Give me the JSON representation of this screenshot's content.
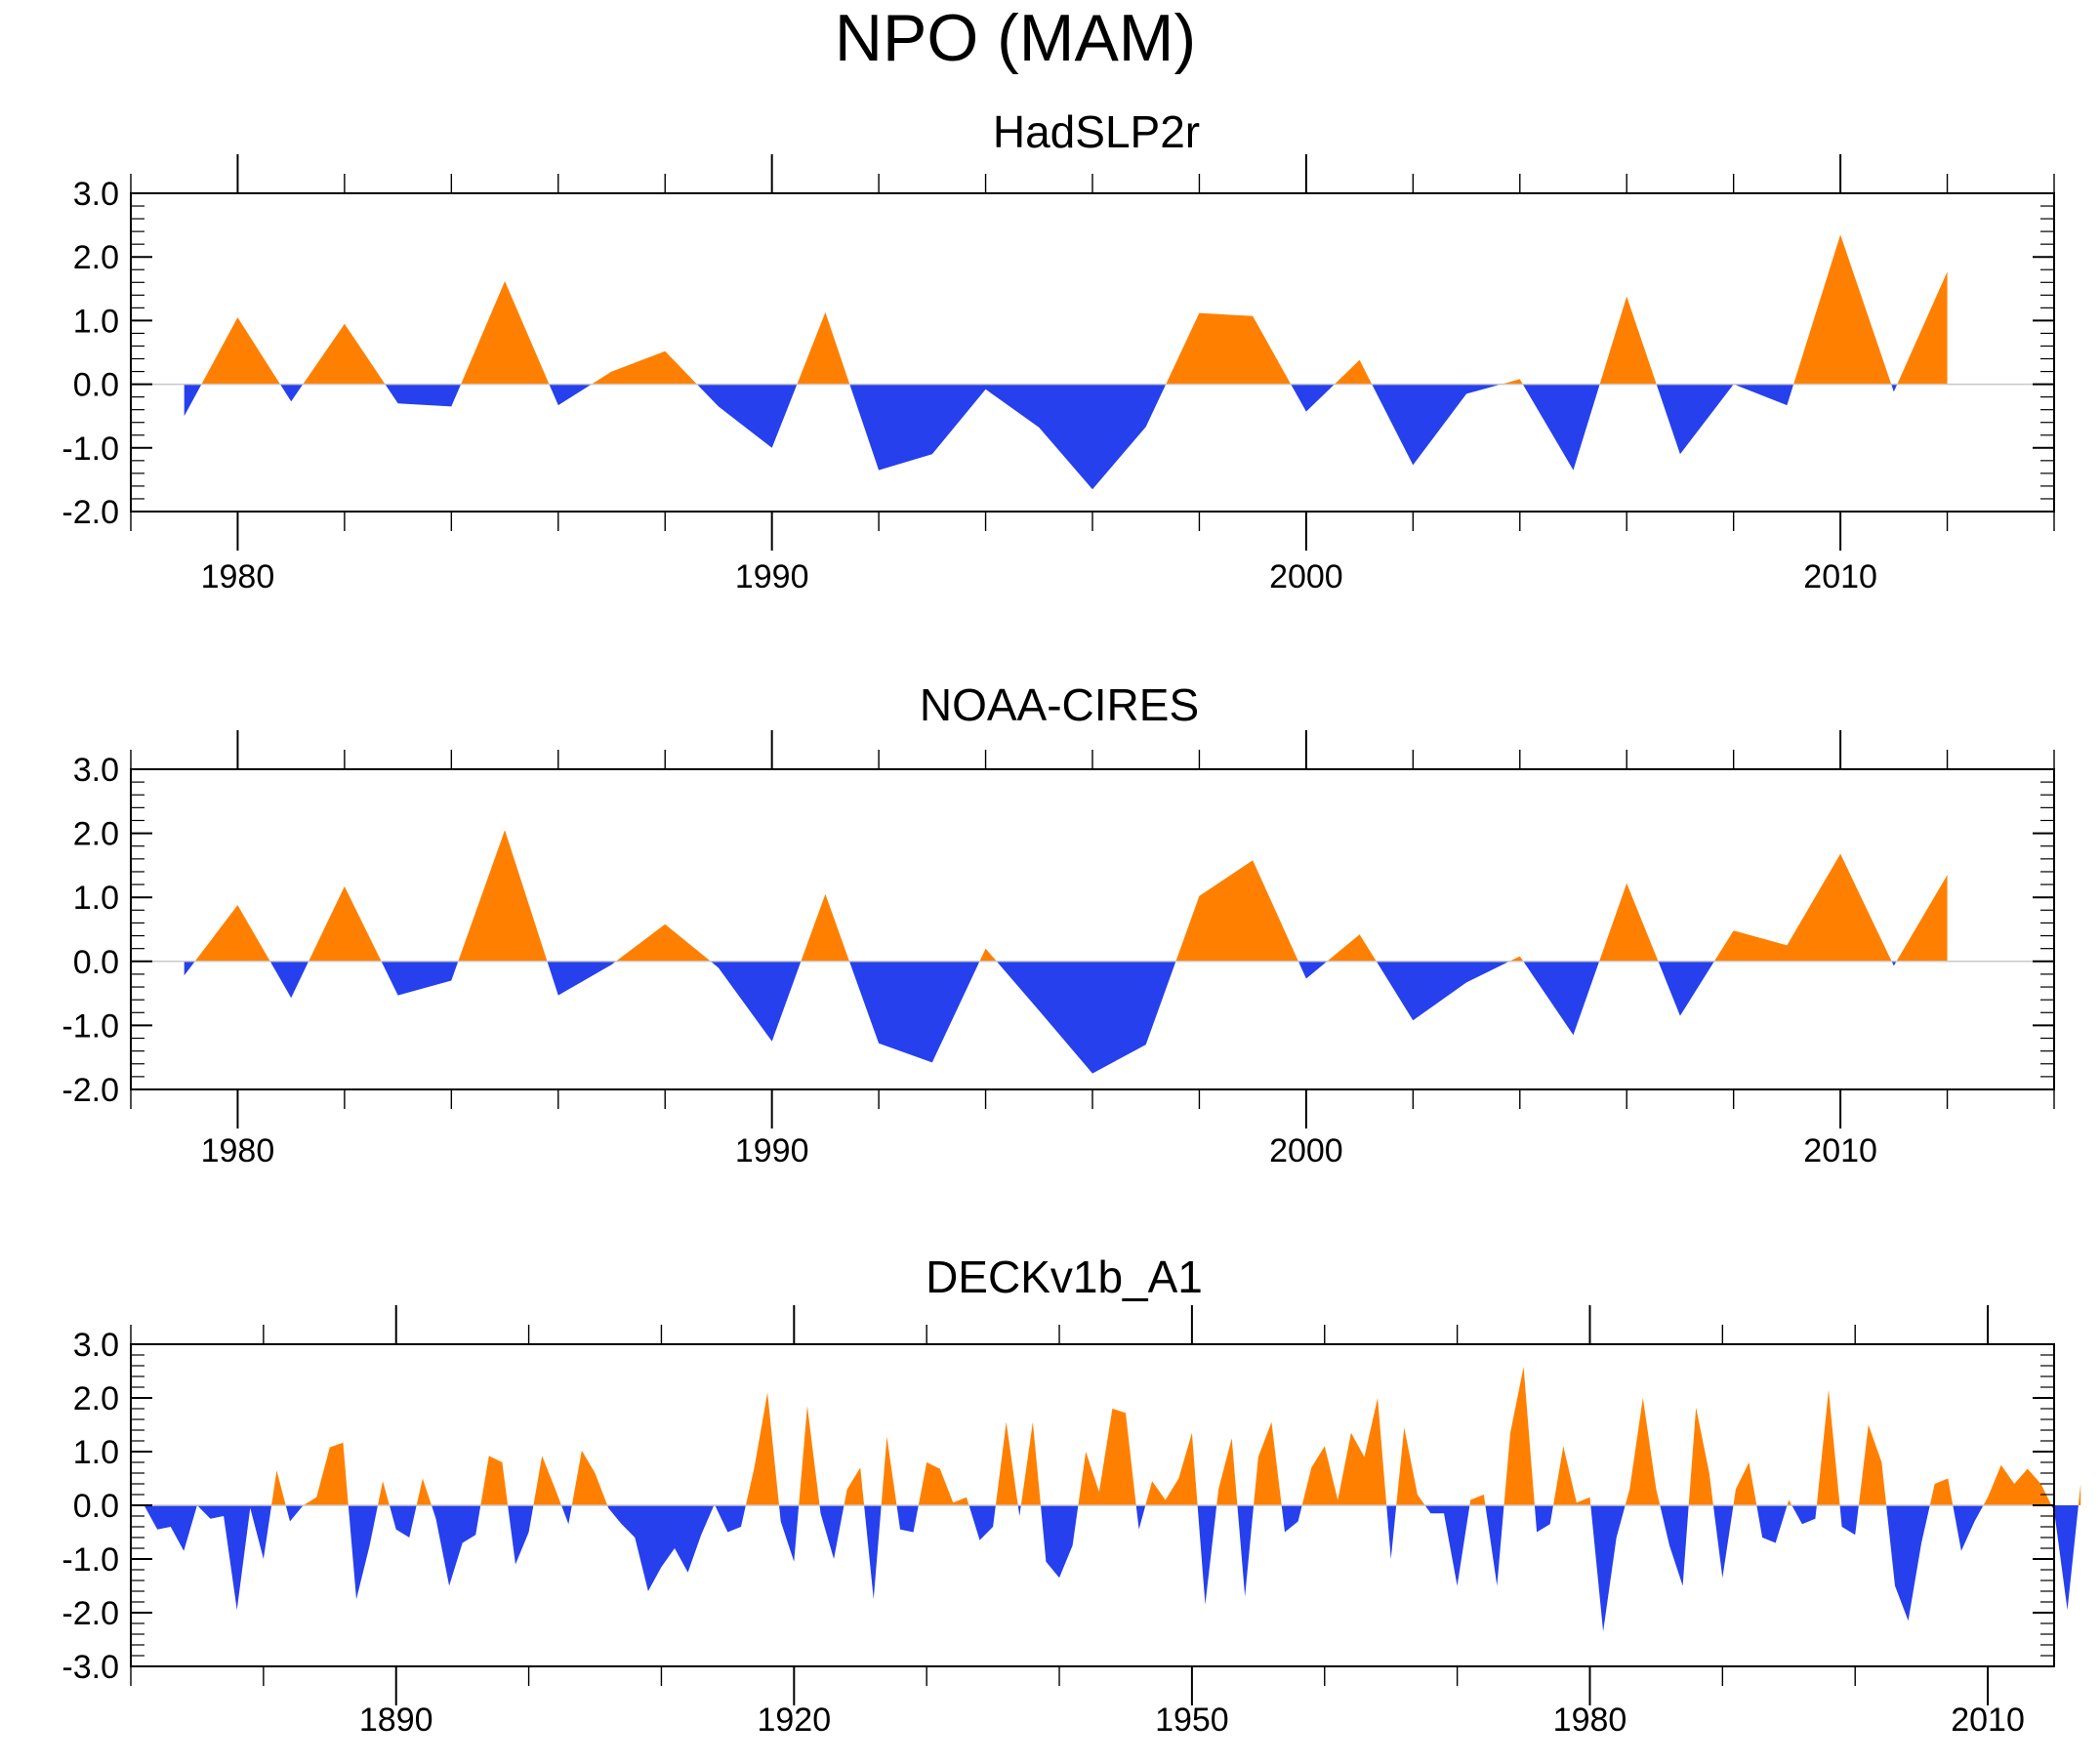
{
  "title": "NPO (MAM)",
  "colors": {
    "positive": "#ff8000",
    "negative": "#2640ee",
    "frame": "#000000",
    "zero_line": "#c8c8c8"
  },
  "chart_data": [
    {
      "type": "area",
      "title": "HadSLP2r",
      "xlim": [
        1978,
        2014
      ],
      "ylim": [
        -2.0,
        3.0
      ],
      "xticks": [
        1980,
        1990,
        2000,
        2010
      ],
      "xtick_labels": [
        "1980",
        "1990",
        "2000",
        "2010"
      ],
      "yticks": [
        -2.0,
        -1.0,
        0.0,
        1.0,
        2.0,
        3.0
      ],
      "ytick_labels": [
        "-2.0",
        "-1.0",
        "0.0",
        "1.0",
        "2.0",
        "3.0"
      ],
      "x": [
        1979,
        1980,
        1981,
        1982,
        1983,
        1984,
        1985,
        1986,
        1987,
        1988,
        1989,
        1990,
        1991,
        1992,
        1993,
        1994,
        1995,
        1996,
        1997,
        1998,
        1999,
        2000,
        2001,
        2002,
        2003,
        2004,
        2005,
        2006,
        2007,
        2008,
        2009,
        2010,
        2011,
        2012
      ],
      "values": [
        -0.5,
        1.05,
        -0.27,
        0.95,
        -0.3,
        -0.35,
        1.62,
        -0.33,
        0.2,
        0.52,
        -0.35,
        -1.0,
        1.13,
        -1.35,
        -1.1,
        -0.08,
        -0.68,
        -1.65,
        -0.67,
        1.12,
        1.07,
        -0.43,
        0.38,
        -1.27,
        -0.15,
        0.08,
        -1.35,
        1.38,
        -1.1,
        0.0,
        -0.33,
        2.35,
        -0.12,
        1.77
      ]
    },
    {
      "type": "area",
      "title": "NOAA-CIRES",
      "xlim": [
        1978,
        2014
      ],
      "ylim": [
        -2.0,
        3.0
      ],
      "xticks": [
        1980,
        1990,
        2000,
        2010
      ],
      "xtick_labels": [
        "1980",
        "1990",
        "2000",
        "2010"
      ],
      "yticks": [
        -2.0,
        -1.0,
        0.0,
        1.0,
        2.0,
        3.0
      ],
      "ytick_labels": [
        "-2.0",
        "-1.0",
        "0.0",
        "1.0",
        "2.0",
        "3.0"
      ],
      "x": [
        1979,
        1980,
        1981,
        1982,
        1983,
        1984,
        1985,
        1986,
        1987,
        1988,
        1989,
        1990,
        1991,
        1992,
        1993,
        1994,
        1995,
        1996,
        1997,
        1998,
        1999,
        2000,
        2001,
        2002,
        2003,
        2004,
        2005,
        2006,
        2007,
        2008,
        2009,
        2010,
        2011,
        2012
      ],
      "values": [
        -0.22,
        0.88,
        -0.57,
        1.17,
        -0.53,
        -0.3,
        2.05,
        -0.53,
        -0.05,
        0.58,
        -0.1,
        -1.25,
        1.05,
        -1.28,
        -1.58,
        0.2,
        -0.77,
        -1.75,
        -1.3,
        1.02,
        1.58,
        -0.27,
        0.42,
        -0.92,
        -0.33,
        0.08,
        -1.15,
        1.22,
        -0.85,
        0.48,
        0.25,
        1.68,
        -0.07,
        1.35
      ]
    },
    {
      "type": "area",
      "title": "DECKv1b_A1",
      "xlim": [
        1870,
        2015
      ],
      "ylim": [
        -3.0,
        3.0
      ],
      "xticks": [
        1890,
        1920,
        1950,
        1980,
        2010
      ],
      "xtick_labels": [
        "1890",
        "1920",
        "1950",
        "1980",
        "2010"
      ],
      "yticks": [
        -3.0,
        -2.0,
        -1.0,
        0.0,
        1.0,
        2.0,
        3.0
      ],
      "ytick_labels": [
        "-3.0",
        "-2.0",
        "-1.0",
        "0.0",
        "1.0",
        "2.0",
        "3.0"
      ],
      "x_start": 1871,
      "values": [
        0.0,
        -0.45,
        -0.4,
        -0.85,
        0.0,
        -0.25,
        -0.2,
        -1.95,
        -0.05,
        -1.0,
        0.65,
        -0.3,
        0.0,
        0.15,
        1.08,
        1.17,
        -1.75,
        -0.75,
        0.45,
        -0.45,
        -0.6,
        0.5,
        -0.25,
        -1.5,
        -0.7,
        -0.55,
        0.92,
        0.8,
        -1.1,
        -0.5,
        0.92,
        0.3,
        -0.35,
        1.02,
        0.6,
        -0.05,
        -0.35,
        -0.6,
        -1.6,
        -1.15,
        -0.8,
        -1.25,
        -0.55,
        0.02,
        -0.5,
        -0.4,
        0.7,
        2.1,
        -0.3,
        -1.05,
        1.85,
        -0.15,
        -1.0,
        0.3,
        0.7,
        -1.75,
        1.28,
        -0.45,
        -0.5,
        0.8,
        0.68,
        0.05,
        0.15,
        -0.65,
        -0.4,
        1.55,
        -0.2,
        1.55,
        -1.05,
        -1.35,
        -0.75,
        1.0,
        0.25,
        1.8,
        1.72,
        -0.45,
        0.45,
        0.1,
        0.5,
        1.35,
        -1.85,
        0.3,
        1.25,
        -1.7,
        0.9,
        1.55,
        -0.5,
        -0.3,
        0.7,
        1.1,
        0.1,
        1.35,
        0.9,
        2.0,
        -1.0,
        1.45,
        0.2,
        -0.15,
        -0.15,
        -1.5,
        0.1,
        0.2,
        -1.5,
        1.35,
        2.58,
        -0.5,
        -0.35,
        1.1,
        0.05,
        0.15,
        -2.35,
        -0.6,
        0.3,
        2.0,
        0.3,
        -0.75,
        -1.5,
        1.82,
        0.6,
        -1.35,
        0.3,
        0.8,
        -0.6,
        -0.7,
        0.1,
        -0.35,
        -0.25,
        2.15,
        -0.4,
        -0.55,
        1.5,
        0.8,
        -1.5,
        -2.15,
        -0.7,
        0.4,
        0.5,
        -0.85,
        -0.3,
        0.15,
        0.75,
        0.4,
        0.68,
        0.4,
        -0.1,
        -1.95,
        0.4
      ]
    }
  ]
}
